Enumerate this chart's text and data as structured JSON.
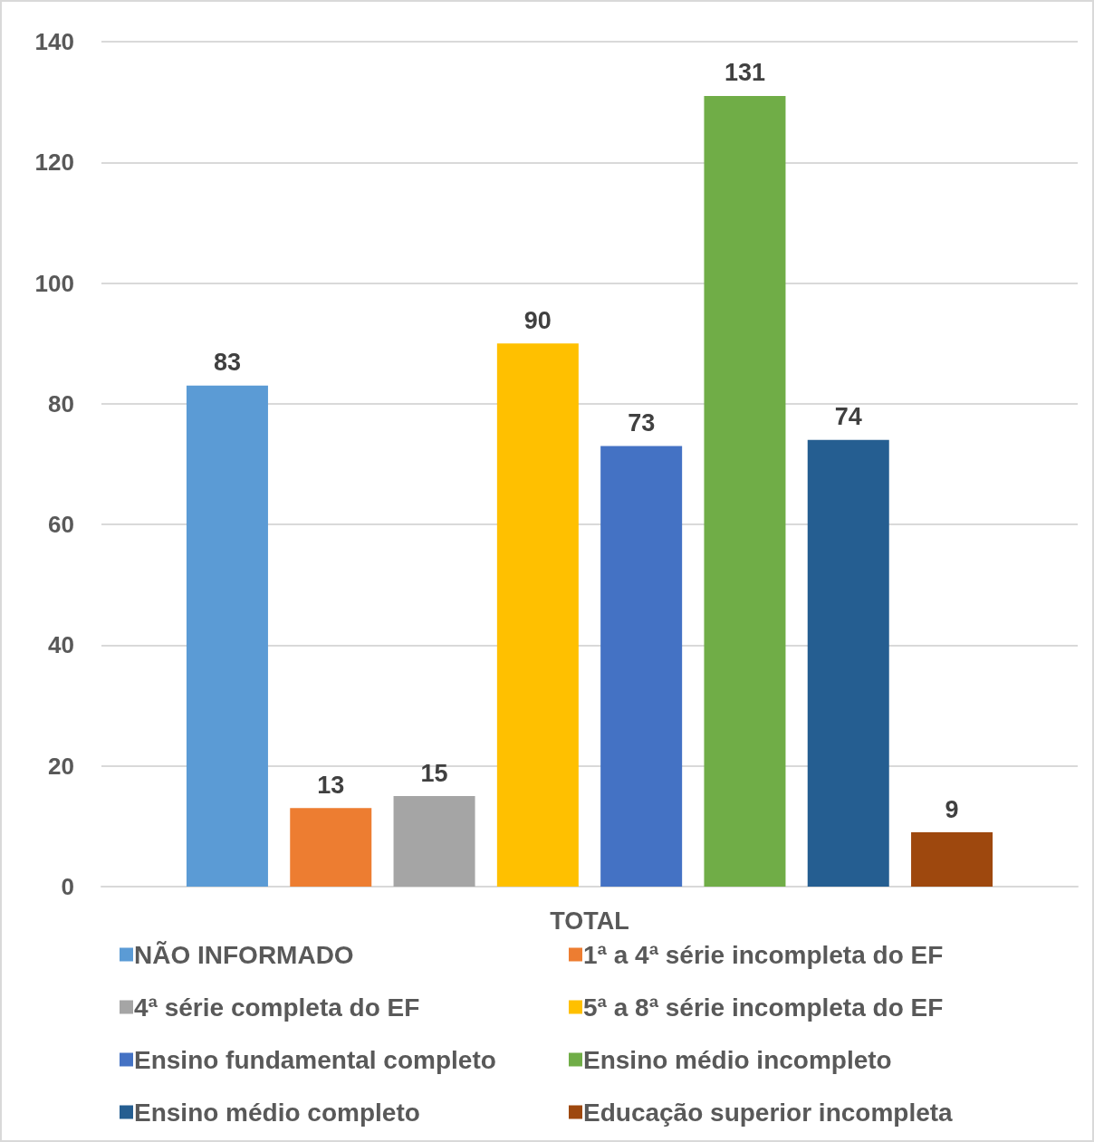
{
  "chart_data": {
    "type": "bar",
    "categories": [
      "TOTAL"
    ],
    "series": [
      {
        "name": "NÃO INFORMADO",
        "color": "#5b9bd5",
        "values": [
          83
        ]
      },
      {
        "name": "1ª a 4ª série incompleta do EF",
        "color": "#ed7d31",
        "values": [
          13
        ]
      },
      {
        "name": "4ª série completa do EF",
        "color": "#a5a5a5",
        "values": [
          15
        ]
      },
      {
        "name": "5ª a 8ª série incompleta do EF",
        "color": "#ffc000",
        "values": [
          90
        ]
      },
      {
        "name": "Ensino fundamental completo",
        "color": "#4472c4",
        "values": [
          73
        ]
      },
      {
        "name": "Ensino médio incompleto",
        "color": "#70ad47",
        "values": [
          131
        ]
      },
      {
        "name": "Ensino médio completo",
        "color": "#255e91",
        "values": [
          74
        ]
      },
      {
        "name": "Educação superior incompleta",
        "color": "#9e480e",
        "values": [
          9
        ]
      }
    ],
    "ylim": [
      0,
      140
    ],
    "yticks": [
      0,
      20,
      40,
      60,
      80,
      100,
      120,
      140
    ],
    "grid": "y",
    "legend": "bottom",
    "data_labels": true
  }
}
